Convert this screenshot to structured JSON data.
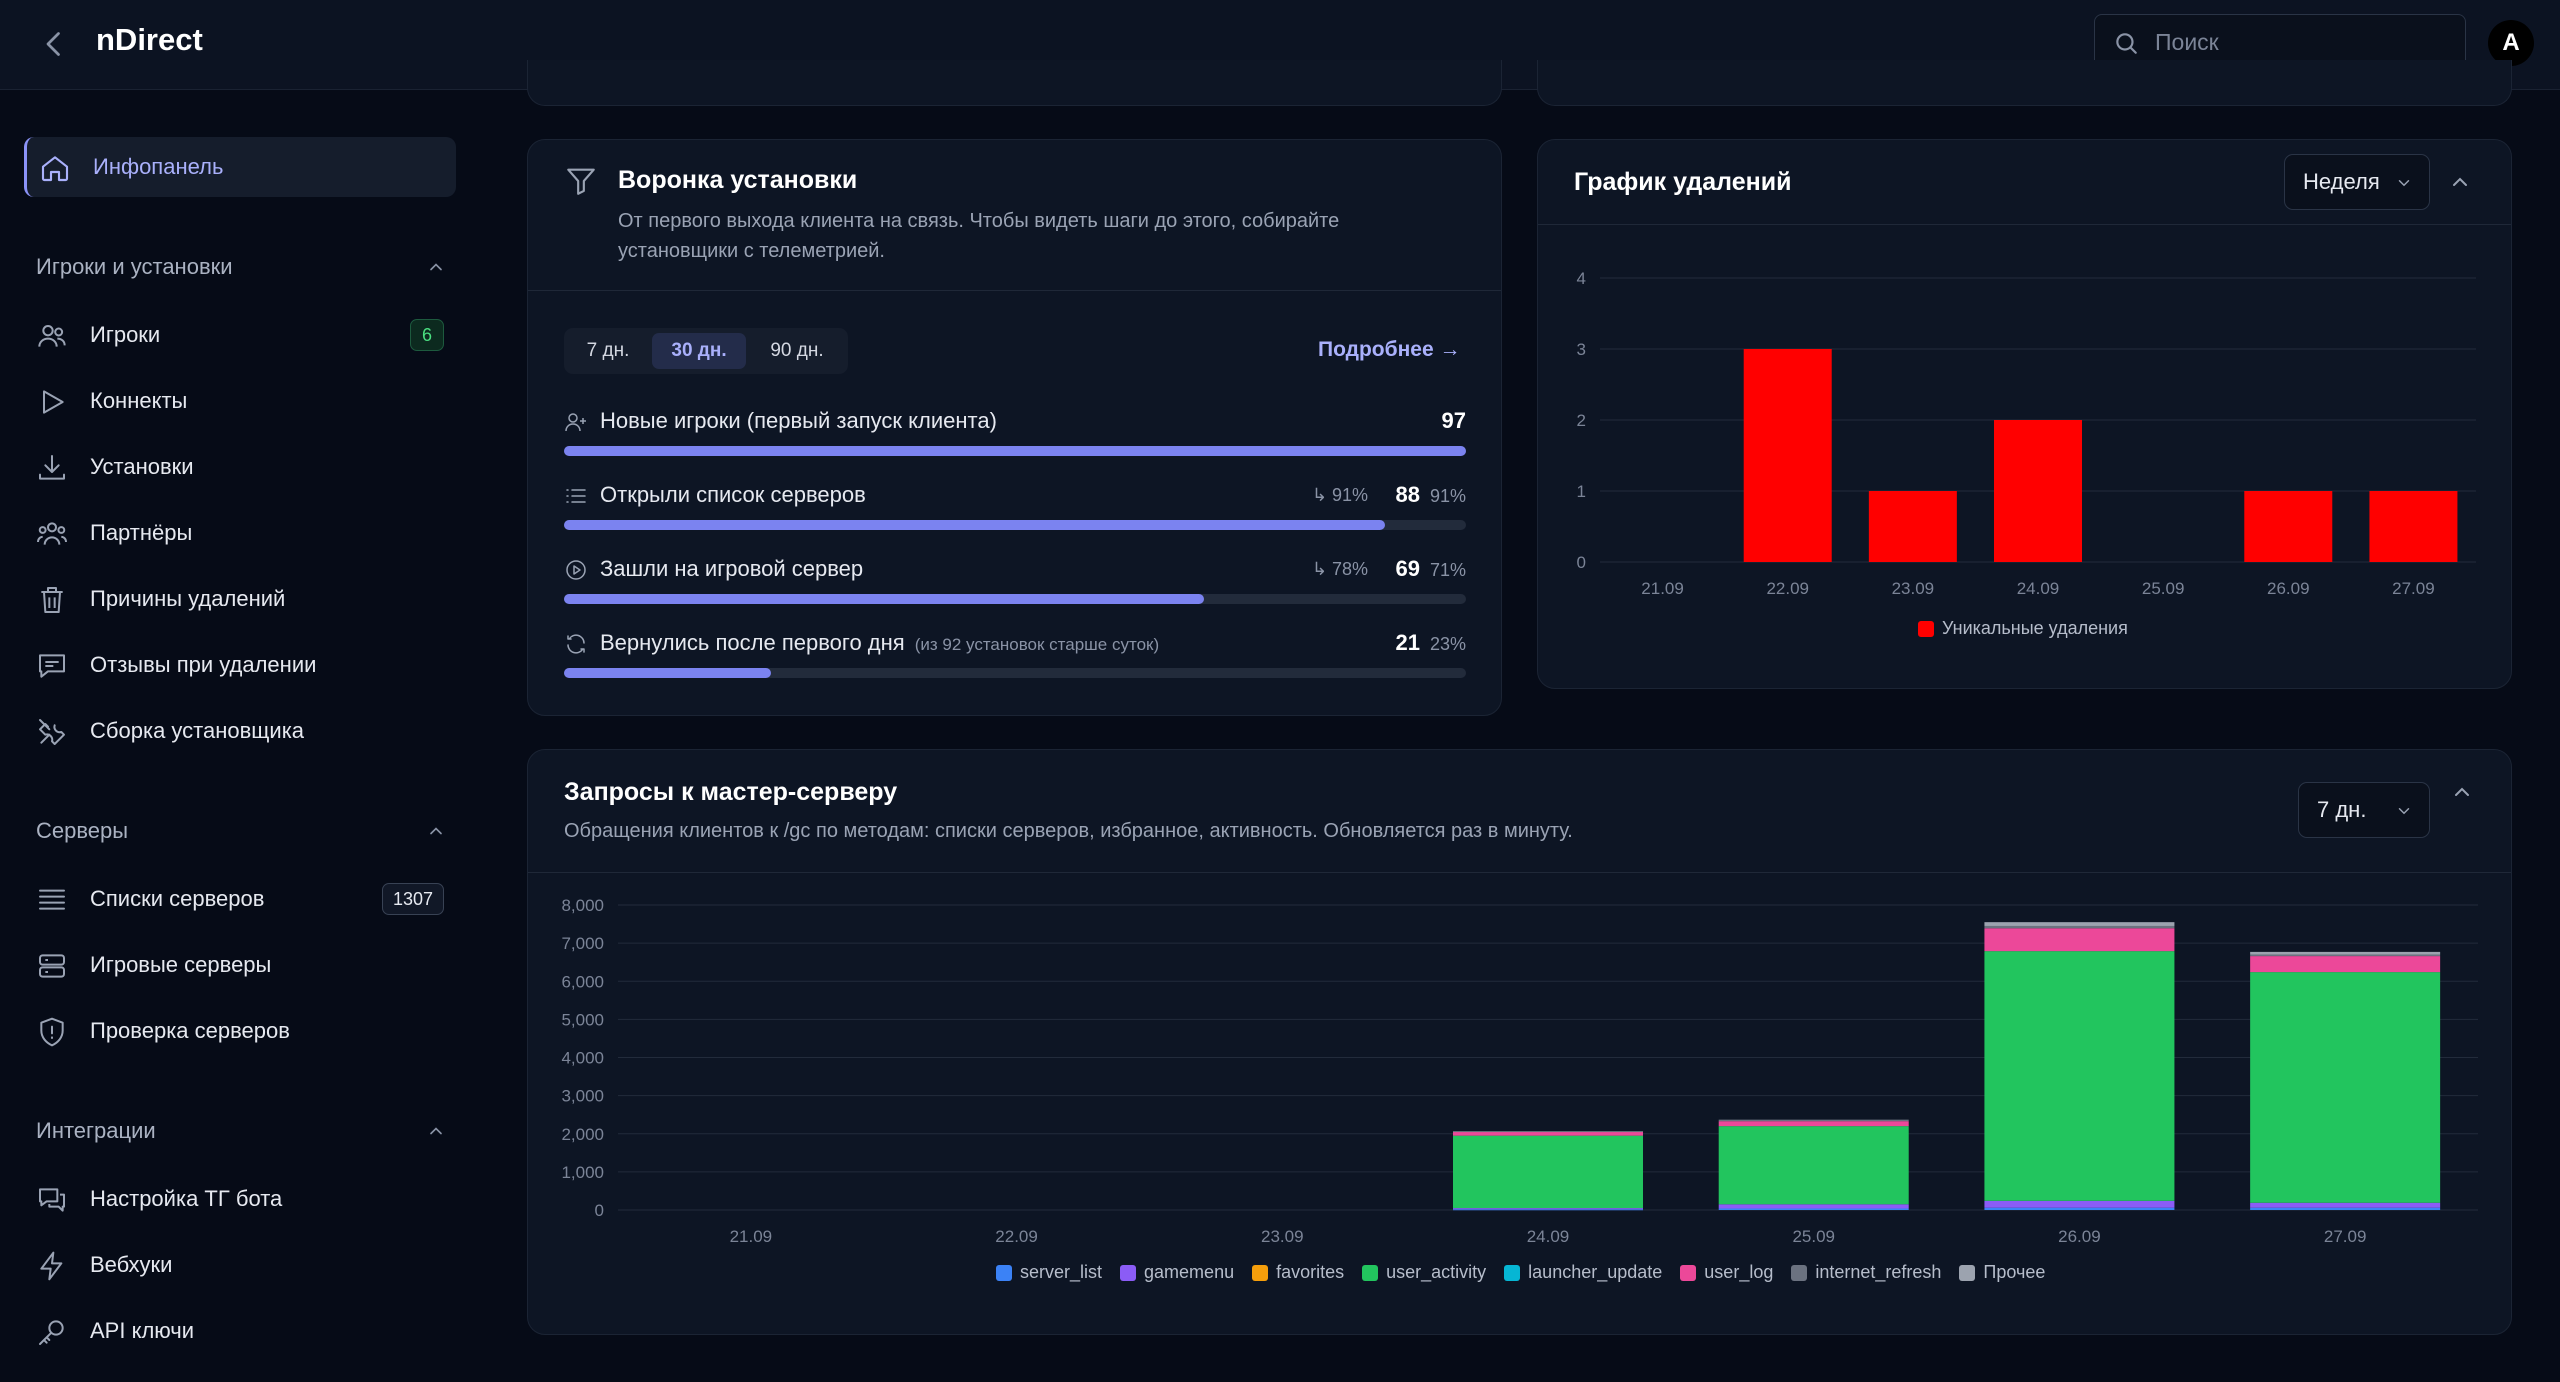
{
  "app": {
    "title": "nDirect"
  },
  "search": {
    "placeholder": "Поиск"
  },
  "user": {
    "avatar_letter": "A"
  },
  "sidebar": {
    "dashboard": "Инфопанель",
    "sections": [
      {
        "title": "Игроки и установки",
        "items": [
          {
            "label": "Игроки",
            "badge": "6",
            "icon": "users-icon"
          },
          {
            "label": "Коннекты",
            "icon": "play-icon"
          },
          {
            "label": "Установки",
            "icon": "download-icon"
          },
          {
            "label": "Партнёры",
            "icon": "partners-icon"
          },
          {
            "label": "Причины удалений",
            "icon": "trash-icon"
          },
          {
            "label": "Отзывы при удалении",
            "icon": "feedback-icon"
          },
          {
            "label": "Сборка установщика",
            "icon": "tools-icon"
          }
        ]
      },
      {
        "title": "Серверы",
        "items": [
          {
            "label": "Списки серверов",
            "badge": "1307",
            "icon": "list-icon"
          },
          {
            "label": "Игровые серверы",
            "icon": "server-icon"
          },
          {
            "label": "Проверка серверов",
            "icon": "shield-icon"
          }
        ]
      },
      {
        "title": "Интеграции",
        "items": [
          {
            "label": "Настройка ТГ бота",
            "icon": "chat-icon"
          },
          {
            "label": "Вебхуки",
            "icon": "bolt-icon"
          },
          {
            "label": "API ключи",
            "icon": "key-icon"
          }
        ]
      }
    ]
  },
  "funnel": {
    "title": "Воронка установки",
    "subtitle_1": "От первого выхода клиента на связь. Чтобы видеть шаги до этого, собирайте",
    "subtitle_2": "установщики с телеметрией.",
    "periods": [
      "7 дн.",
      "30 дн.",
      "90 дн."
    ],
    "selected_period": "30 дн.",
    "more": "Подробнее →",
    "steps": [
      {
        "label": "Новые игроки (первый запуск клиента)",
        "value": "97",
        "fill": 1.0
      },
      {
        "label": "Открыли список серверов",
        "conv": "↳ 91%",
        "value": "88",
        "pct": "91%",
        "fill": 0.91
      },
      {
        "label": "Зашли на игровой сервер",
        "conv": "↳ 78%",
        "value": "69",
        "pct": "71%",
        "fill": 0.71
      },
      {
        "label": "Вернулись после первого дня",
        "note": "(из 92 установок старше суток)",
        "value": "21",
        "pct": "23%",
        "fill": 0.23
      }
    ]
  },
  "deletions": {
    "title": "График удалений",
    "period": "Неделя"
  },
  "master": {
    "title": "Запросы к мастер-серверу",
    "subtitle": "Обращения клиентов к /gc по методам: списки серверов, избранное, активность. Обновляется раз в минуту.",
    "period": "7 дн."
  },
  "chart_data": [
    {
      "type": "bar",
      "categories": [
        "21.09",
        "22.09",
        "23.09",
        "24.09",
        "25.09",
        "26.09",
        "27.09"
      ],
      "series": [
        {
          "name": "Уникальные удаления",
          "values": [
            0,
            3,
            1,
            2,
            0,
            1,
            1
          ],
          "color": "#ff0000"
        }
      ],
      "ylim": [
        0,
        4
      ],
      "yticks": [
        "0",
        "1",
        "2",
        "3",
        "4"
      ],
      "legend": "bottom"
    },
    {
      "type": "bar",
      "stacked": true,
      "categories": [
        "21.09",
        "22.09",
        "23.09",
        "24.09",
        "25.09",
        "26.09",
        "27.09"
      ],
      "series": [
        {
          "name": "server_list",
          "color": "#3b82f6",
          "values": [
            0,
            0,
            0,
            20,
            40,
            60,
            60
          ]
        },
        {
          "name": "gamemenu",
          "color": "#8b5cf6",
          "values": [
            0,
            0,
            0,
            30,
            110,
            180,
            130
          ]
        },
        {
          "name": "favorites",
          "color": "#f59e0b",
          "values": [
            0,
            0,
            0,
            0,
            0,
            0,
            0
          ]
        },
        {
          "name": "user_activity",
          "color": "#22c55e",
          "values": [
            0,
            0,
            0,
            1900,
            2050,
            6550,
            6050
          ]
        },
        {
          "name": "launcher_update",
          "color": "#06b6d4",
          "values": [
            0,
            0,
            0,
            0,
            0,
            0,
            0
          ]
        },
        {
          "name": "user_log",
          "color": "#ec4899",
          "values": [
            0,
            0,
            0,
            100,
            130,
            600,
            420
          ]
        },
        {
          "name": "internet_refresh",
          "color": "#6b7280",
          "values": [
            0,
            0,
            0,
            20,
            40,
            60,
            40
          ]
        },
        {
          "name": "Прочее",
          "color": "#9ca3af",
          "values": [
            0,
            0,
            0,
            0,
            0,
            100,
            70
          ]
        }
      ],
      "ylim": [
        0,
        8000
      ],
      "yticks": [
        "0",
        "1,000",
        "2,000",
        "3,000",
        "4,000",
        "5,000",
        "6,000",
        "7,000",
        "8,000"
      ],
      "legend": "bottom"
    }
  ]
}
